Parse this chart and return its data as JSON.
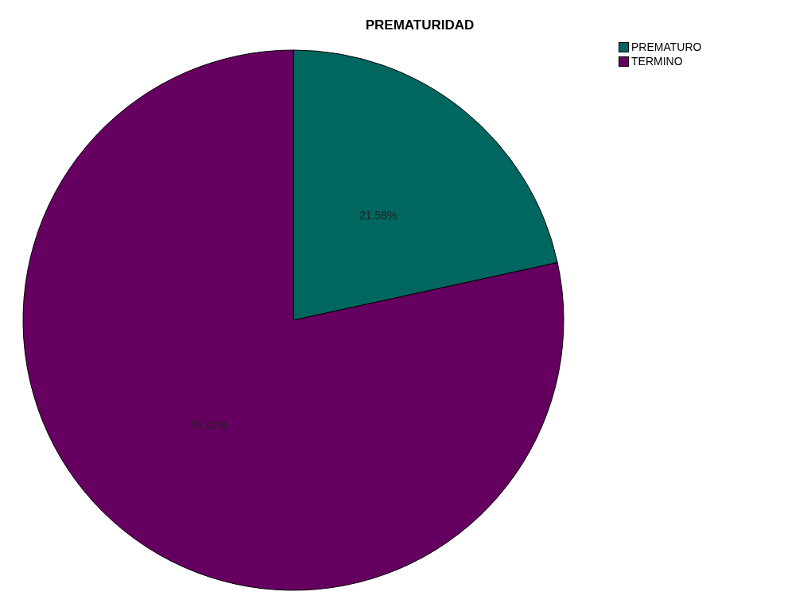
{
  "chart_data": {
    "type": "pie",
    "title": "PREMATURIDAD",
    "categories": [
      "PREMATURO",
      "TERMINO"
    ],
    "values": [
      21.58,
      78.42
    ],
    "colors": [
      "#006660",
      "#660060"
    ],
    "value_labels": [
      "21,58%",
      "78,42%"
    ],
    "legend": "top right"
  }
}
